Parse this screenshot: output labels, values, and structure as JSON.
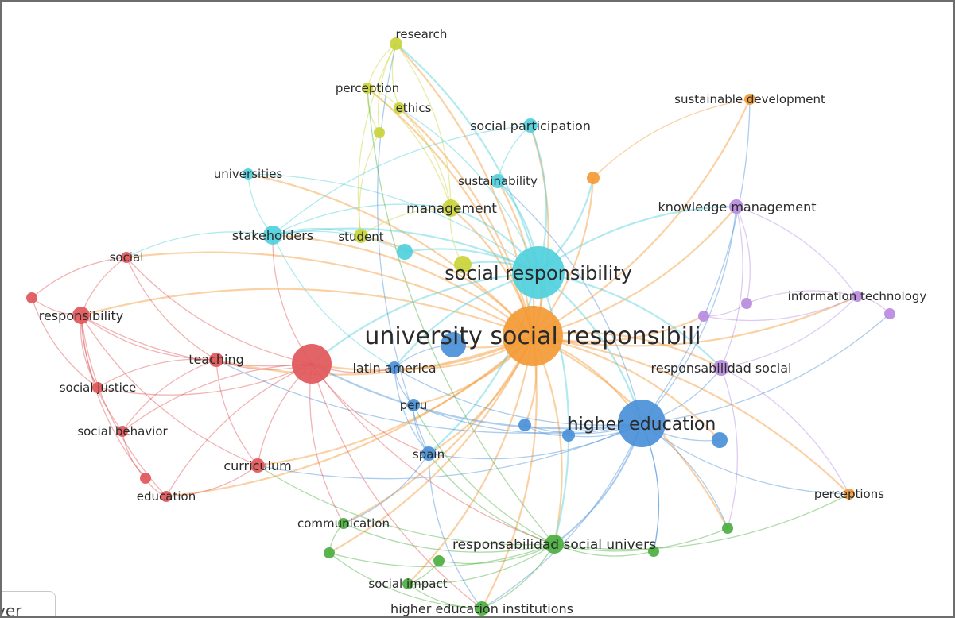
{
  "network": {
    "colors": {
      "red": "#e15759",
      "cyan": "#4fd0dc",
      "yellow": "#c9d43a",
      "blue": "#4a90d9",
      "green": "#4caf3f",
      "orange": "#f39a35",
      "purple": "#b98be0"
    },
    "nodes": [
      {
        "id": "usr",
        "label": "university social responsibili",
        "cluster": "orange"
      },
      {
        "id": "sr",
        "label": "social responsibility",
        "cluster": "cyan"
      },
      {
        "id": "he",
        "label": "higher education",
        "cluster": "blue"
      },
      {
        "id": "resp_soc",
        "label": "responsabilidad social",
        "cluster": "purple"
      },
      {
        "id": "rsu",
        "label": "responsabilidad social univers",
        "cluster": "green"
      },
      {
        "id": "research",
        "label": "research",
        "cluster": "yellow"
      },
      {
        "id": "perception",
        "label": "perception",
        "cluster": "yellow"
      },
      {
        "id": "ethics",
        "label": "ethics",
        "cluster": "yellow"
      },
      {
        "id": "y_unl",
        "label": "",
        "cluster": "yellow"
      },
      {
        "id": "management",
        "label": "management",
        "cluster": "yellow"
      },
      {
        "id": "student",
        "label": "student",
        "cluster": "yellow"
      },
      {
        "id": "y_unl2",
        "label": "",
        "cluster": "yellow"
      },
      {
        "id": "sust_dev",
        "label": "sustainable development",
        "cluster": "orange"
      },
      {
        "id": "o_unl",
        "label": "",
        "cluster": "orange"
      },
      {
        "id": "perceptions",
        "label": "perceptions",
        "cluster": "orange"
      },
      {
        "id": "soc_part",
        "label": "social participation",
        "cluster": "cyan"
      },
      {
        "id": "universities",
        "label": "universities",
        "cluster": "cyan"
      },
      {
        "id": "sustainability",
        "label": "sustainability",
        "cluster": "cyan"
      },
      {
        "id": "stakeholders",
        "label": "stakeholders",
        "cluster": "cyan"
      },
      {
        "id": "c_unl",
        "label": "",
        "cluster": "cyan"
      },
      {
        "id": "know_man",
        "label": "knowledge management",
        "cluster": "purple"
      },
      {
        "id": "info_tech",
        "label": "information technology",
        "cluster": "purple"
      },
      {
        "id": "p_unl1",
        "label": "",
        "cluster": "purple"
      },
      {
        "id": "p_unl2",
        "label": "",
        "cluster": "purple"
      },
      {
        "id": "p_unl3",
        "label": "",
        "cluster": "purple"
      },
      {
        "id": "social",
        "label": "social",
        "cluster": "red"
      },
      {
        "id": "r_unl",
        "label": "",
        "cluster": "red"
      },
      {
        "id": "responsibility",
        "label": "responsibility",
        "cluster": "red"
      },
      {
        "id": "teaching",
        "label": "teaching",
        "cluster": "red"
      },
      {
        "id": "big_red",
        "label": "",
        "cluster": "red"
      },
      {
        "id": "soc_just",
        "label": "social justice",
        "cluster": "red"
      },
      {
        "id": "soc_beh",
        "label": "social behavior",
        "cluster": "red"
      },
      {
        "id": "curriculum",
        "label": "curriculum",
        "cluster": "red"
      },
      {
        "id": "education",
        "label": "education",
        "cluster": "red"
      },
      {
        "id": "r_unl2",
        "label": "",
        "cluster": "red"
      },
      {
        "id": "latin_am",
        "label": "latin america",
        "cluster": "blue"
      },
      {
        "id": "blue_mid",
        "label": "",
        "cluster": "blue"
      },
      {
        "id": "peru",
        "label": "peru",
        "cluster": "blue"
      },
      {
        "id": "spain",
        "label": "spain",
        "cluster": "blue"
      },
      {
        "id": "b_unl1",
        "label": "",
        "cluster": "blue"
      },
      {
        "id": "b_unl2",
        "label": "",
        "cluster": "blue"
      },
      {
        "id": "b_unl3",
        "label": "",
        "cluster": "blue"
      },
      {
        "id": "communication",
        "label": "communication",
        "cluster": "green"
      },
      {
        "id": "soc_impact",
        "label": "social impact",
        "cluster": "green"
      },
      {
        "id": "hei",
        "label": "higher education institutions",
        "cluster": "green"
      },
      {
        "id": "g_unl1",
        "label": "",
        "cluster": "green"
      },
      {
        "id": "g_unl2",
        "label": "",
        "cluster": "green"
      },
      {
        "id": "g_unl3",
        "label": "",
        "cluster": "green"
      },
      {
        "id": "g_unl4",
        "label": "",
        "cluster": "green"
      }
    ],
    "edges": [
      [
        "usr",
        "sr"
      ],
      [
        "usr",
        "he"
      ],
      [
        "usr",
        "resp_soc"
      ],
      [
        "usr",
        "rsu"
      ],
      [
        "usr",
        "big_red"
      ],
      [
        "usr",
        "management"
      ],
      [
        "usr",
        "student"
      ],
      [
        "usr",
        "stakeholders"
      ],
      [
        "usr",
        "sust_dev"
      ],
      [
        "usr",
        "perceptions"
      ],
      [
        "usr",
        "know_man"
      ],
      [
        "usr",
        "info_tech"
      ],
      [
        "usr",
        "latin_am"
      ],
      [
        "usr",
        "peru"
      ],
      [
        "usr",
        "spain"
      ],
      [
        "usr",
        "hei"
      ],
      [
        "usr",
        "teaching"
      ],
      [
        "usr",
        "curriculum"
      ],
      [
        "usr",
        "education"
      ],
      [
        "usr",
        "social"
      ],
      [
        "usr",
        "responsibility"
      ],
      [
        "usr",
        "research"
      ],
      [
        "usr",
        "perception"
      ],
      [
        "usr",
        "ethics"
      ],
      [
        "usr",
        "soc_part"
      ],
      [
        "usr",
        "sustainability"
      ],
      [
        "usr",
        "universities"
      ],
      [
        "usr",
        "communication"
      ],
      [
        "usr",
        "soc_impact"
      ],
      [
        "usr",
        "o_unl"
      ],
      [
        "usr",
        "blue_mid"
      ],
      [
        "usr",
        "b_unl1"
      ],
      [
        "usr",
        "b_unl3"
      ],
      [
        "usr",
        "p_unl1"
      ],
      [
        "usr",
        "g_unl1"
      ],
      [
        "usr",
        "g_unl4"
      ],
      [
        "sr",
        "he"
      ],
      [
        "sr",
        "stakeholders"
      ],
      [
        "sr",
        "management"
      ],
      [
        "sr",
        "research"
      ],
      [
        "sr",
        "soc_part"
      ],
      [
        "sr",
        "sustainability"
      ],
      [
        "sr",
        "universities"
      ],
      [
        "sr",
        "big_red"
      ],
      [
        "sr",
        "latin_am"
      ],
      [
        "sr",
        "resp_soc"
      ],
      [
        "sr",
        "rsu"
      ],
      [
        "sr",
        "know_man"
      ],
      [
        "sr",
        "spain"
      ],
      [
        "sr",
        "ethics"
      ],
      [
        "sr",
        "c_unl"
      ],
      [
        "sr",
        "o_unl"
      ],
      [
        "sr",
        "y_unl2"
      ],
      [
        "he",
        "resp_soc"
      ],
      [
        "he",
        "rsu"
      ],
      [
        "he",
        "big_red"
      ],
      [
        "he",
        "latin_am"
      ],
      [
        "he",
        "peru"
      ],
      [
        "he",
        "spain"
      ],
      [
        "he",
        "hei"
      ],
      [
        "he",
        "b_unl1"
      ],
      [
        "he",
        "b_unl2"
      ],
      [
        "he",
        "b_unl3"
      ],
      [
        "he",
        "g_unl3"
      ],
      [
        "he",
        "g_unl4"
      ],
      [
        "he",
        "know_man"
      ],
      [
        "he",
        "teaching"
      ],
      [
        "he",
        "curriculum"
      ],
      [
        "big_red",
        "teaching"
      ],
      [
        "big_red",
        "responsibility"
      ],
      [
        "big_red",
        "social"
      ],
      [
        "big_red",
        "curriculum"
      ],
      [
        "big_red",
        "soc_just"
      ],
      [
        "big_red",
        "soc_beh"
      ],
      [
        "big_red",
        "education"
      ],
      [
        "big_red",
        "latin_am"
      ],
      [
        "big_red",
        "stakeholders"
      ],
      [
        "big_red",
        "spain"
      ],
      [
        "big_red",
        "rsu"
      ],
      [
        "big_red",
        "communication"
      ],
      [
        "big_red",
        "hei"
      ],
      [
        "responsibility",
        "social"
      ],
      [
        "responsibility",
        "r_unl"
      ],
      [
        "responsibility",
        "soc_just"
      ],
      [
        "responsibility",
        "soc_beh"
      ],
      [
        "responsibility",
        "teaching"
      ],
      [
        "responsibility",
        "curriculum"
      ],
      [
        "responsibility",
        "education"
      ],
      [
        "responsibility",
        "r_unl2"
      ],
      [
        "social",
        "r_unl"
      ],
      [
        "social",
        "stakeholders"
      ],
      [
        "social",
        "teaching"
      ],
      [
        "teaching",
        "curriculum"
      ],
      [
        "teaching",
        "soc_beh"
      ],
      [
        "teaching",
        "soc_just"
      ],
      [
        "curriculum",
        "education"
      ],
      [
        "curriculum",
        "rsu"
      ],
      [
        "education",
        "r_unl2"
      ],
      [
        "soc_beh",
        "r_unl2"
      ],
      [
        "r_unl",
        "soc_just"
      ],
      [
        "research",
        "perception"
      ],
      [
        "research",
        "ethics"
      ],
      [
        "research",
        "management"
      ],
      [
        "research",
        "student"
      ],
      [
        "research",
        "y_unl"
      ],
      [
        "perception",
        "management"
      ],
      [
        "perception",
        "ethics"
      ],
      [
        "perception",
        "y_unl"
      ],
      [
        "ethics",
        "management"
      ],
      [
        "management",
        "student"
      ],
      [
        "management",
        "y_unl2"
      ],
      [
        "management",
        "stakeholders"
      ],
      [
        "y_unl",
        "student"
      ],
      [
        "research",
        "spain"
      ],
      [
        "perception",
        "rsu"
      ],
      [
        "stakeholders",
        "universities"
      ],
      [
        "stakeholders",
        "soc_part"
      ],
      [
        "stakeholders",
        "c_unl"
      ],
      [
        "stakeholders",
        "latin_am"
      ],
      [
        "stakeholders",
        "student"
      ],
      [
        "soc_part",
        "sustainability"
      ],
      [
        "sustainability",
        "he"
      ],
      [
        "sust_dev",
        "he"
      ],
      [
        "sust_dev",
        "o_unl"
      ],
      [
        "perceptions",
        "he"
      ],
      [
        "perceptions",
        "resp_soc"
      ],
      [
        "perceptions",
        "rsu"
      ],
      [
        "know_man",
        "resp_soc"
      ],
      [
        "know_man",
        "info_tech"
      ],
      [
        "info_tech",
        "resp_soc"
      ],
      [
        "info_tech",
        "p_unl1"
      ],
      [
        "info_tech",
        "p_unl2"
      ],
      [
        "info_tech",
        "p_unl3"
      ],
      [
        "p_unl1",
        "p_unl2"
      ],
      [
        "p_unl3",
        "he"
      ],
      [
        "know_man",
        "p_unl2"
      ],
      [
        "rsu",
        "hei"
      ],
      [
        "rsu",
        "soc_impact"
      ],
      [
        "rsu",
        "communication"
      ],
      [
        "rsu",
        "g_unl1"
      ],
      [
        "rsu",
        "g_unl2"
      ],
      [
        "rsu",
        "g_unl3"
      ],
      [
        "rsu",
        "g_unl4"
      ],
      [
        "rsu",
        "spain"
      ],
      [
        "hei",
        "soc_impact"
      ],
      [
        "hei",
        "g_unl1"
      ],
      [
        "communication",
        "g_unl1"
      ],
      [
        "communication",
        "spain"
      ],
      [
        "g_unl2",
        "soc_impact"
      ],
      [
        "g_unl4",
        "resp_soc"
      ],
      [
        "g_unl3",
        "he"
      ],
      [
        "latin_am",
        "peru"
      ],
      [
        "latin_am",
        "spain"
      ],
      [
        "peru",
        "spain"
      ],
      [
        "blue_mid",
        "latin_am"
      ],
      [
        "b_unl2",
        "b_unl1"
      ],
      [
        "spain",
        "hei"
      ],
      [
        "peru",
        "rsu"
      ]
    ]
  },
  "footer_button": {
    "label": "ver"
  }
}
